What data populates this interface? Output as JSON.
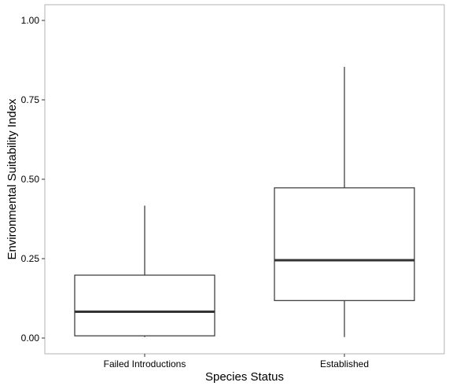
{
  "chart_data": {
    "type": "box",
    "xlabel": "Species Status",
    "ylabel": "Environmental Suitability Index",
    "ylim": [
      0,
      1
    ],
    "yticks": [
      "0.00",
      "0.25",
      "0.50",
      "0.75",
      "1.00"
    ],
    "ytick_values": [
      0,
      0.25,
      0.5,
      0.75,
      1.0
    ],
    "categories": [
      "Failed Introductions",
      "Established"
    ],
    "boxes": [
      {
        "category": "Failed Introductions",
        "whisker_low": 0.003,
        "q1": 0.007,
        "median": 0.083,
        "q3": 0.198,
        "whisker_high": 0.417
      },
      {
        "category": "Established",
        "whisker_low": 0.003,
        "q1": 0.118,
        "median": 0.245,
        "q3": 0.473,
        "whisker_high": 0.854
      }
    ],
    "grid": false,
    "colors": {
      "box_stroke": "#333333",
      "median": "#333333",
      "panel_border": "#b3b3b3",
      "background": "#ffffff"
    }
  }
}
